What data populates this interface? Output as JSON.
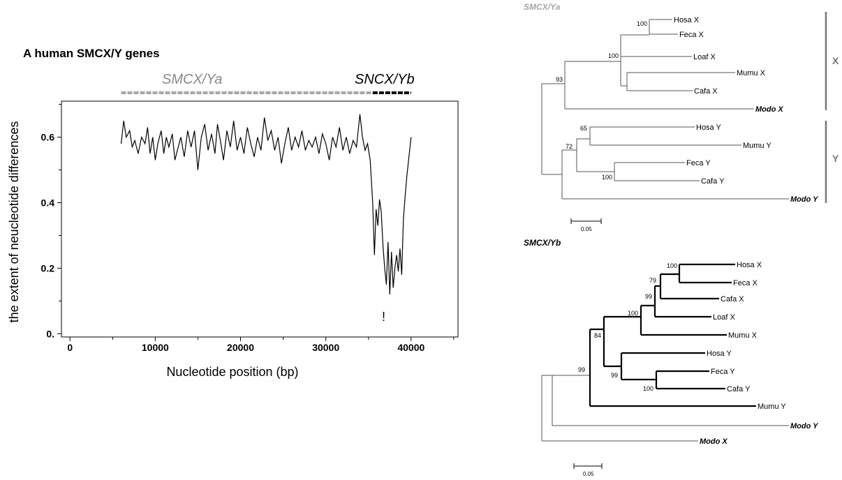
{
  "panel_a": {
    "title": "A human SMCX/Y genes",
    "region_a_label": "SMCX/Ya",
    "region_b_label": "SNCX/Yb",
    "marker": "!"
  },
  "chart_data": {
    "type": "line",
    "title": "",
    "xlabel": "Nucleotide position (bp)",
    "ylabel": "the extent of neucleotide differences",
    "xlim": [
      -1000,
      45500
    ],
    "ylim": [
      -0.01,
      0.71
    ],
    "x_ticks": [
      0,
      10000,
      20000,
      30000,
      40000
    ],
    "x_tick_labels": [
      "0",
      "10000",
      "20000",
      "30000",
      "40000"
    ],
    "y_ticks": [
      0.0,
      0.2,
      0.4,
      0.6
    ],
    "y_tick_labels": [
      "0.",
      "0.2",
      "0.4",
      "0.6"
    ],
    "grid": false,
    "regions": [
      {
        "label": "SMCX/Ya",
        "start": 6000,
        "end": 35500,
        "color": "#a6a6a6"
      },
      {
        "label": "SNCX/Yb",
        "start": 35500,
        "end": 40000,
        "color": "#000000"
      }
    ],
    "series": [
      {
        "color": "#000000",
        "x": [
          6000,
          6300,
          6600,
          7000,
          7300,
          7600,
          8000,
          8400,
          8800,
          9100,
          9400,
          9700,
          10000,
          10300,
          10700,
          11000,
          11300,
          11600,
          12000,
          12300,
          12700,
          13000,
          13400,
          13800,
          14200,
          14600,
          15000,
          15400,
          15800,
          16200,
          16600,
          17000,
          17300,
          17700,
          18000,
          18400,
          18800,
          19200,
          19600,
          20000,
          20400,
          20800,
          21200,
          21600,
          22000,
          22400,
          22800,
          23200,
          23600,
          24000,
          24400,
          24800,
          25200,
          25600,
          26000,
          26400,
          26800,
          27200,
          27600,
          28000,
          28400,
          28800,
          29200,
          29600,
          30000,
          30400,
          30800,
          31200,
          31600,
          32000,
          32400,
          32800,
          33200,
          33600,
          34000,
          34300,
          34600,
          34900,
          35200,
          35500,
          35700,
          35900,
          36100,
          36300,
          36500,
          36700,
          36900,
          37100,
          37300,
          37500,
          37700,
          37900,
          38100,
          38300,
          38500,
          38700,
          38900,
          39100,
          39300,
          39500,
          39700,
          40000
        ],
        "y": [
          0.58,
          0.65,
          0.6,
          0.62,
          0.57,
          0.59,
          0.55,
          0.6,
          0.58,
          0.63,
          0.55,
          0.6,
          0.53,
          0.58,
          0.62,
          0.55,
          0.6,
          0.57,
          0.61,
          0.53,
          0.57,
          0.6,
          0.54,
          0.62,
          0.57,
          0.62,
          0.5,
          0.6,
          0.64,
          0.56,
          0.61,
          0.55,
          0.64,
          0.58,
          0.53,
          0.62,
          0.57,
          0.65,
          0.56,
          0.6,
          0.55,
          0.63,
          0.58,
          0.54,
          0.6,
          0.56,
          0.66,
          0.59,
          0.62,
          0.56,
          0.6,
          0.52,
          0.58,
          0.63,
          0.56,
          0.6,
          0.57,
          0.62,
          0.56,
          0.59,
          0.57,
          0.6,
          0.55,
          0.61,
          0.58,
          0.53,
          0.6,
          0.57,
          0.63,
          0.56,
          0.6,
          0.55,
          0.59,
          0.57,
          0.67,
          0.6,
          0.56,
          0.58,
          0.53,
          0.4,
          0.24,
          0.38,
          0.33,
          0.41,
          0.37,
          0.27,
          0.2,
          0.15,
          0.28,
          0.12,
          0.25,
          0.14,
          0.2,
          0.24,
          0.19,
          0.26,
          0.18,
          0.35,
          0.42,
          0.48,
          0.53,
          0.6
        ]
      }
    ]
  },
  "tree_ya": {
    "title": "SMCX/Ya",
    "group_x": "X",
    "group_y": "Y",
    "scale": "0.05",
    "taxa": [
      "Hosa X",
      "Feca X",
      "Loaf X",
      "Mumu X",
      "Cafa X",
      "Modo X",
      "Hosa Y",
      "Mumu Y",
      "Feca Y",
      "Cafa Y",
      "Modo Y"
    ],
    "bootstraps": [
      "100",
      "100",
      "93",
      "65",
      "72",
      "100"
    ]
  },
  "tree_yb": {
    "title": "SMCX/Yb",
    "scale": "0.05",
    "taxa": [
      "Hosa X",
      "Feca X",
      "Cafa X",
      "Loaf X",
      "Mumu X",
      "Hosa Y",
      "Feca Y",
      "Cafa Y",
      "Mumu Y",
      "Modo Y",
      "Modo X"
    ],
    "bootstraps": [
      "100",
      "79",
      "99",
      "100",
      "84",
      "99",
      "100",
      "99"
    ]
  },
  "colors": {
    "gray": "#a6a6a6",
    "black": "#000000"
  }
}
